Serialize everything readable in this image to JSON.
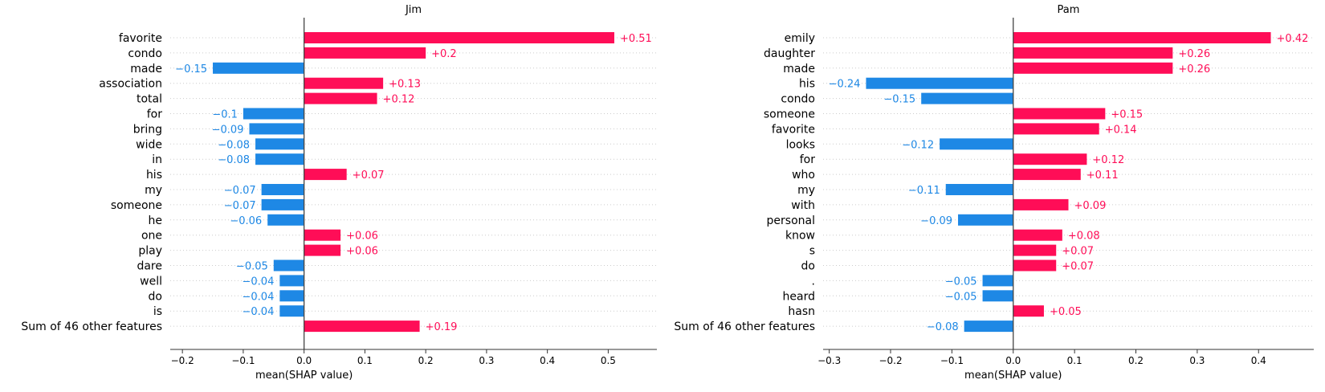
{
  "colors": {
    "positive": "#ff0d57",
    "negative": "#1e88e5",
    "axis": "#333333",
    "zero_line": "#444444",
    "grid": "#cccccc"
  },
  "chart_data": [
    {
      "type": "bar",
      "orientation": "horizontal",
      "title": "Jim",
      "xlabel": "mean(SHAP value)",
      "xlim": [
        -0.22,
        0.58
      ],
      "xticks": [
        -0.2,
        -0.1,
        0.0,
        0.1,
        0.2,
        0.3,
        0.4,
        0.5
      ],
      "xtick_labels": [
        "−0.2",
        "−0.1",
        "0.0",
        "0.1",
        "0.2",
        "0.3",
        "0.4",
        "0.5"
      ],
      "grid": "horizontal dotted",
      "categories": [
        "favorite",
        "condo",
        "made",
        "association",
        "total",
        "for",
        "bring",
        "wide",
        "in",
        "his",
        "my",
        "someone",
        "he",
        "one",
        "play",
        "dare",
        "well",
        "do",
        "is",
        "Sum of 46 other features"
      ],
      "values": [
        0.51,
        0.2,
        -0.15,
        0.13,
        0.12,
        -0.1,
        -0.09,
        -0.08,
        -0.08,
        0.07,
        -0.07,
        -0.07,
        -0.06,
        0.06,
        0.06,
        -0.05,
        -0.04,
        -0.04,
        -0.04,
        0.19
      ],
      "value_labels": [
        "+0.51",
        "+0.2",
        "−0.15",
        "+0.13",
        "+0.12",
        "−0.1",
        "−0.09",
        "−0.08",
        "−0.08",
        "+0.07",
        "−0.07",
        "−0.07",
        "−0.06",
        "+0.06",
        "+0.06",
        "−0.05",
        "−0.04",
        "−0.04",
        "−0.04",
        "+0.19"
      ]
    },
    {
      "type": "bar",
      "orientation": "horizontal",
      "title": "Pam",
      "xlabel": "mean(SHAP value)",
      "xlim": [
        -0.31,
        0.49
      ],
      "xticks": [
        -0.3,
        -0.2,
        -0.1,
        0.0,
        0.1,
        0.2,
        0.3,
        0.4
      ],
      "xtick_labels": [
        "−0.3",
        "−0.2",
        "−0.1",
        "0.0",
        "0.1",
        "0.2",
        "0.3",
        "0.4"
      ],
      "grid": "horizontal dotted",
      "categories": [
        "emily",
        "daughter",
        "made",
        "his",
        "condo",
        "someone",
        "favorite",
        "looks",
        "for",
        "who",
        "my",
        "with",
        "personal",
        "know",
        "s",
        "do",
        ".",
        "heard",
        "hasn",
        "Sum of 46 other features"
      ],
      "values": [
        0.42,
        0.26,
        0.26,
        -0.24,
        -0.15,
        0.15,
        0.14,
        -0.12,
        0.12,
        0.11,
        -0.11,
        0.09,
        -0.09,
        0.08,
        0.07,
        0.07,
        -0.05,
        -0.05,
        0.05,
        -0.08
      ],
      "value_labels": [
        "+0.42",
        "+0.26",
        "+0.26",
        "−0.24",
        "−0.15",
        "+0.15",
        "+0.14",
        "−0.12",
        "+0.12",
        "+0.11",
        "−0.11",
        "+0.09",
        "−0.09",
        "+0.08",
        "+0.07",
        "+0.07",
        "−0.05",
        "−0.05",
        "+0.05",
        "−0.08"
      ]
    }
  ]
}
